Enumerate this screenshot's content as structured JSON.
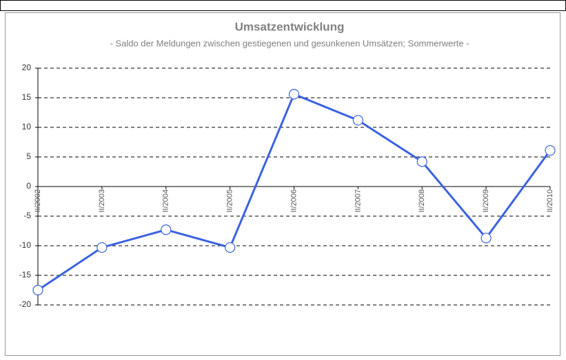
{
  "chart_data": {
    "type": "line",
    "title": "Umsatzentwicklung",
    "subtitle": "- Saldo der Meldungen zwischen gestiegenen und gesunkenen Umsätzen; Sommerwerte -",
    "categories": [
      "II/2002",
      "II/2003",
      "II/2004",
      "II/2005",
      "II/2006",
      "II/2007",
      "II/2008",
      "II/2009",
      "II/2010"
    ],
    "series": [
      {
        "name": "Saldo",
        "color": "#3a62e0",
        "values": [
          -17.5,
          -10.3,
          -7.3,
          -10.3,
          15.6,
          11.2,
          4.2,
          -8.7,
          6.1
        ]
      }
    ],
    "ylim": [
      -20,
      20
    ],
    "yticks": [
      -20,
      -15,
      -10,
      -5,
      0,
      5,
      10,
      15,
      20
    ],
    "grid": true
  }
}
